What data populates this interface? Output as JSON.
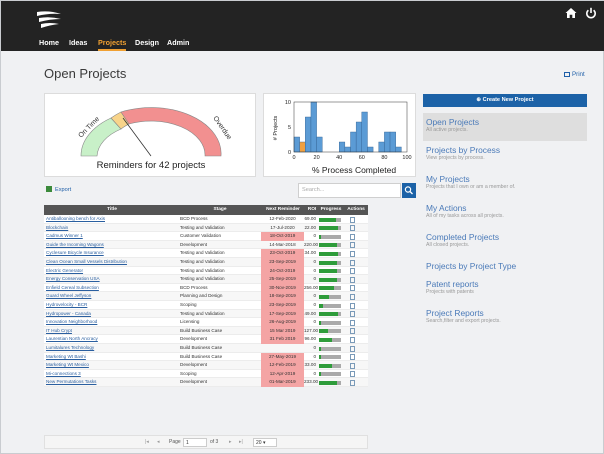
{
  "nav": {
    "items": [
      {
        "label": "Home",
        "active": false
      },
      {
        "label": "Ideas",
        "active": false
      },
      {
        "label": "Projects",
        "active": true
      },
      {
        "label": "Design",
        "active": false
      },
      {
        "label": "Admin",
        "active": false
      }
    ]
  },
  "page": {
    "title": "Open Projects",
    "print_label": "Print"
  },
  "gauge": {
    "left_label": "On Time",
    "right_label": "Overdue",
    "caption": "Reminders for 42 projects"
  },
  "chart_data": {
    "type": "bar",
    "xlabel": "% Process Completed",
    "ylabel": "# Projects",
    "x_ticks": [
      0,
      20,
      40,
      60,
      80,
      100
    ],
    "y_ticks": [
      0,
      5,
      10
    ],
    "ylim": [
      0,
      10
    ],
    "xlim": [
      0,
      100
    ],
    "bins": [
      {
        "x0": 0,
        "x1": 5,
        "value": 3,
        "color": "#5b9bd5"
      },
      {
        "x0": 5,
        "x1": 10,
        "value": 2,
        "color": "#f0a040"
      },
      {
        "x0": 10,
        "x1": 15,
        "value": 7,
        "color": "#5b9bd5"
      },
      {
        "x0": 15,
        "x1": 20,
        "value": 10,
        "color": "#5b9bd5"
      },
      {
        "x0": 20,
        "x1": 25,
        "value": 3,
        "color": "#5b9bd5"
      },
      {
        "x0": 40,
        "x1": 45,
        "value": 2,
        "color": "#5b9bd5"
      },
      {
        "x0": 45,
        "x1": 50,
        "value": 1,
        "color": "#5b9bd5"
      },
      {
        "x0": 50,
        "x1": 55,
        "value": 4,
        "color": "#5b9bd5"
      },
      {
        "x0": 55,
        "x1": 60,
        "value": 6,
        "color": "#5b9bd5"
      },
      {
        "x0": 60,
        "x1": 65,
        "value": 8,
        "color": "#5b9bd5"
      },
      {
        "x0": 65,
        "x1": 70,
        "value": 1,
        "color": "#5b9bd5"
      },
      {
        "x0": 75,
        "x1": 80,
        "value": 2,
        "color": "#5b9bd5"
      },
      {
        "x0": 80,
        "x1": 85,
        "value": 4,
        "color": "#5b9bd5"
      },
      {
        "x0": 85,
        "x1": 90,
        "value": 4,
        "color": "#5b9bd5"
      },
      {
        "x0": 90,
        "x1": 95,
        "value": 1,
        "color": "#5b9bd5"
      }
    ]
  },
  "sidebar": {
    "create_label": "Create New Project",
    "items": [
      {
        "title": "Open Projects",
        "desc": "All active projects.",
        "active": true
      },
      {
        "title": "Projects by Process",
        "desc": "View projects by process.",
        "active": false
      },
      {
        "title": "My Projects",
        "desc": "Projects that I own or am a member of.",
        "active": false
      },
      {
        "title": "My Actions",
        "desc": "All of my tasks across all projects.",
        "active": false
      },
      {
        "title": "Completed Projects",
        "desc": "All closed projects.",
        "active": false
      },
      {
        "title": "Projects by Project Type",
        "desc": "",
        "active": false
      },
      {
        "title": "Patent reports",
        "desc": "Projects with patents",
        "active": false
      },
      {
        "title": "Project Reports",
        "desc": "Search,filter and export projects.",
        "active": false
      }
    ]
  },
  "table": {
    "export_label": "Export",
    "search_placeholder": "Search...",
    "headers": {
      "title": "Title",
      "stage": "Stage",
      "reminder": "Next Reminder",
      "roi": "ROI",
      "progress": "Progress",
      "actions": "Actions"
    },
    "rows": [
      {
        "title": "Antiballooning bench for Axis",
        "stage": "BCD Process",
        "reminder": "12-Feb-2020",
        "overdue": false,
        "roi": "69.00",
        "progress": 0.75
      },
      {
        "title": "Blockchain",
        "stage": "Testing and Validation",
        "reminder": "17-Jul-2020",
        "overdue": false,
        "roi": "22.00",
        "progress": 0.85
      },
      {
        "title": "Cadmus Winner 1",
        "stage": "Customer Validation",
        "reminder": "18-Oct-2019",
        "overdue": true,
        "roi": "0",
        "progress": 0.1
      },
      {
        "title": "Guide the Incoming Wagons",
        "stage": "Development",
        "reminder": "14-Mar-2018",
        "overdue": false,
        "roi": "220.00",
        "progress": 0.8
      },
      {
        "title": "Cyclesure Bicycle Insurance",
        "stage": "Testing and Validation",
        "reminder": "23-Oct-2019",
        "overdue": true,
        "roi": "34.00",
        "progress": 0.85
      },
      {
        "title": "Clean Ocean Small Vessels Distribution",
        "stage": "Testing and Validation",
        "reminder": "23-Sep-2019",
        "overdue": true,
        "roi": "0",
        "progress": 0.8
      },
      {
        "title": "Electric Generator",
        "stage": "Testing and Validation",
        "reminder": "24-Oct-2019",
        "overdue": true,
        "roi": "0",
        "progress": 0.8
      },
      {
        "title": "Energy Conservation USA",
        "stage": "Testing and Validation",
        "reminder": "25-Sep-2019",
        "overdue": true,
        "roi": "0",
        "progress": 0.8
      },
      {
        "title": "Enfield Cereal Subsection",
        "stage": "BCD Process",
        "reminder": "30-Nov-2019",
        "overdue": true,
        "roi": "256.00",
        "progress": 0.7
      },
      {
        "title": "Guard Wheel Jeffyson",
        "stage": "Planning and Design",
        "reminder": "18-Sep-2019",
        "overdue": true,
        "roi": "0",
        "progress": 0.45
      },
      {
        "title": "Hydrovelocity - BCR",
        "stage": "Scoping",
        "reminder": "23-Sep-2019",
        "overdue": true,
        "roi": "0",
        "progress": 0.2
      },
      {
        "title": "Hydropower - Canada",
        "stage": "Testing and Validation",
        "reminder": "17-Sep-2019",
        "overdue": true,
        "roi": "49.00",
        "progress": 0.85
      },
      {
        "title": "Innovation Neighborhood",
        "stage": "Licensing",
        "reminder": "26-Aug-2019",
        "overdue": true,
        "roi": "0",
        "progress": 0.1
      },
      {
        "title": "IT Hub Crypt",
        "stage": "Build Business Case",
        "reminder": "15 Mar 2019",
        "overdue": true,
        "roi": "127.00",
        "progress": 0.4
      },
      {
        "title": "Laurentian North Ancracy",
        "stage": "Development",
        "reminder": "31 Feb 2019",
        "overdue": true,
        "roi": "96.00",
        "progress": 0.6
      },
      {
        "title": "Lumitalures Technology",
        "stage": "Build Business Case",
        "reminder": "",
        "overdue": false,
        "roi": "0",
        "progress": 0.1
      },
      {
        "title": "Marketing Wt Bashi",
        "stage": "Build Business Case",
        "reminder": "27-May-2019",
        "overdue": true,
        "roi": "0",
        "progress": 0.1
      },
      {
        "title": "Marketing Wt Mexico",
        "stage": "Development",
        "reminder": "12-Feb-2019",
        "overdue": true,
        "roi": "33.00",
        "progress": 0.6
      },
      {
        "title": "Mi-connections 3",
        "stage": "Scoping",
        "reminder": "12-Apr-2019",
        "overdue": true,
        "roi": "0",
        "progress": 0.1
      },
      {
        "title": "New Permutations Tasks",
        "stage": "Development",
        "reminder": "01-Mar-2019",
        "overdue": true,
        "roi": "233.00",
        "progress": 0.8
      }
    ]
  },
  "pager": {
    "page_label": "Page",
    "page_value": "1",
    "of_label": "of 3",
    "page_size": "20"
  }
}
